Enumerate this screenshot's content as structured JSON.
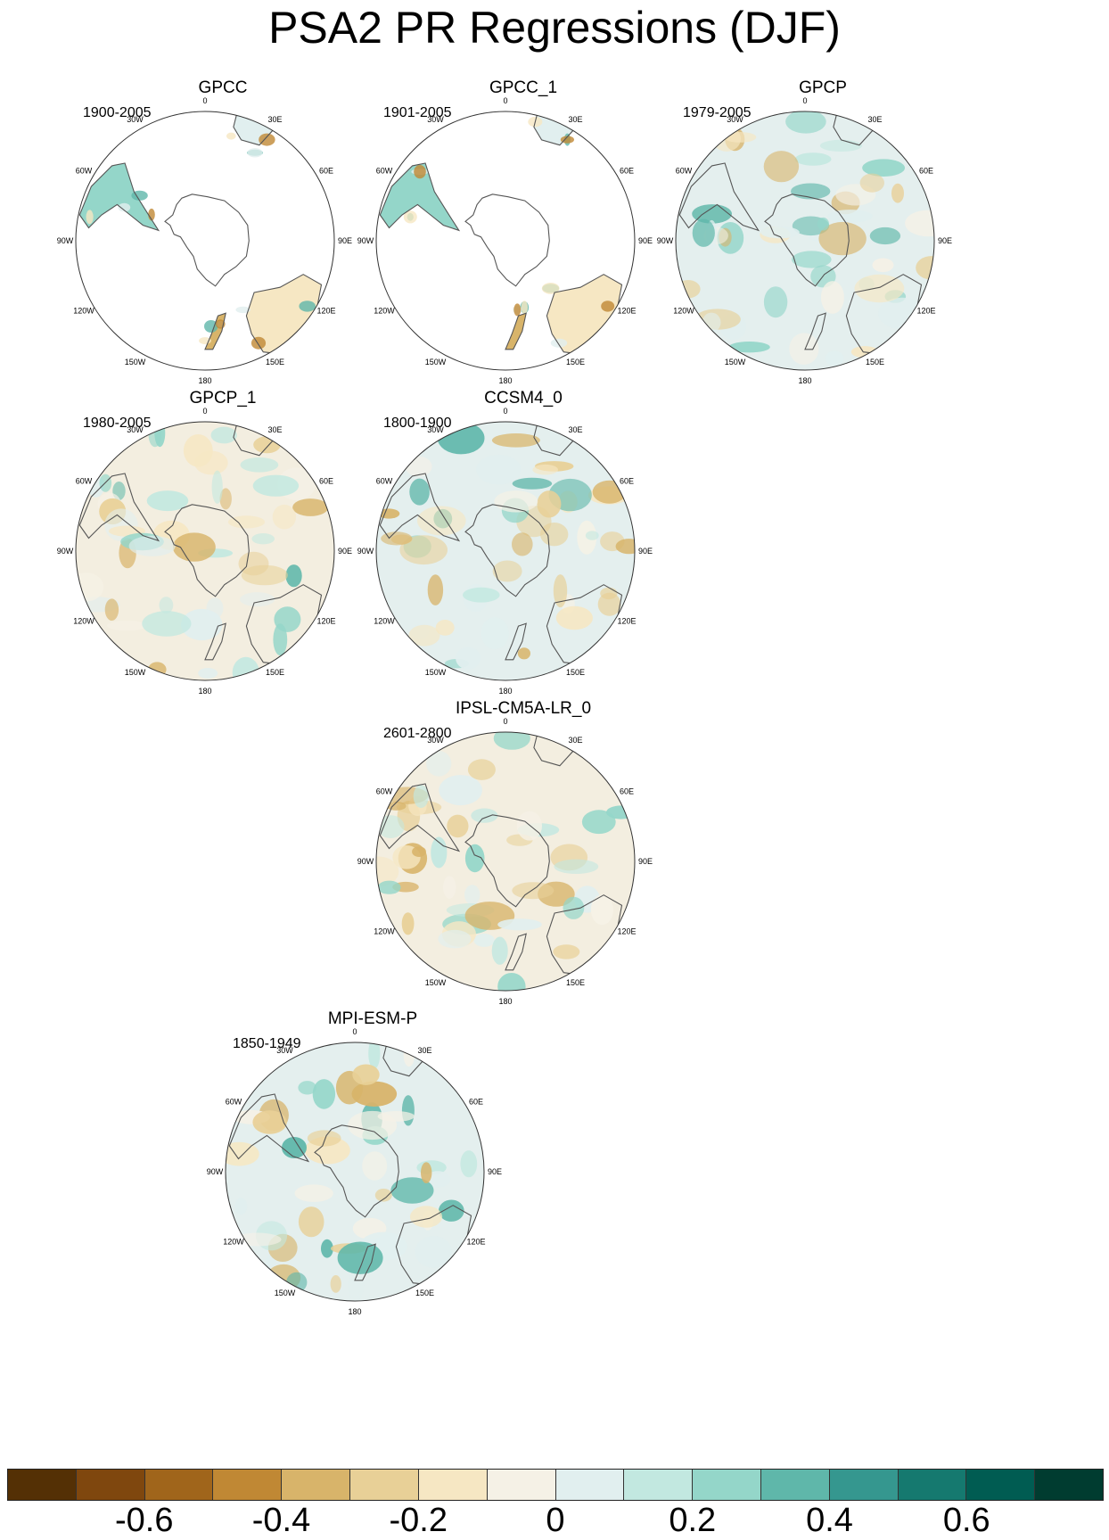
{
  "title": "PSA2 PR Regressions (DJF)",
  "lon_labels": [
    "0",
    "30E",
    "60E",
    "90E",
    "120E",
    "150E",
    "180",
    "150W",
    "120W",
    "90W",
    "60W",
    "30W"
  ],
  "panels": [
    {
      "name": "GPCC",
      "years": "1900-2005",
      "coverage": "land"
    },
    {
      "name": "GPCC_1",
      "years": "1901-2005",
      "coverage": "land"
    },
    {
      "name": "GPCP",
      "years": "1979-2005",
      "coverage": "full"
    },
    {
      "name": "GPCP_1",
      "years": "1980-2005",
      "coverage": "full"
    },
    {
      "name": "CCSM4_0",
      "years": "1800-1900",
      "coverage": "full"
    },
    {
      "name": "IPSL-CM5A-LR_0",
      "years": "2601-2800",
      "coverage": "full"
    },
    {
      "name": "MPI-ESM-P",
      "years": "1850-1949",
      "coverage": "full"
    }
  ],
  "colorbar": {
    "colors": [
      "#543005",
      "#7f470e",
      "#a0651b",
      "#c08834",
      "#d8b46a",
      "#e8d097",
      "#f6e7c3",
      "#f5f1e6",
      "#e1efef",
      "#c2e8e0",
      "#94d6c9",
      "#5fb7aa",
      "#35978f",
      "#15796f",
      "#005c52",
      "#003c30"
    ],
    "labels": [
      "-0.6",
      "-0.4",
      "-0.2",
      "0",
      "0.2",
      "0.4",
      "0.6"
    ]
  }
}
